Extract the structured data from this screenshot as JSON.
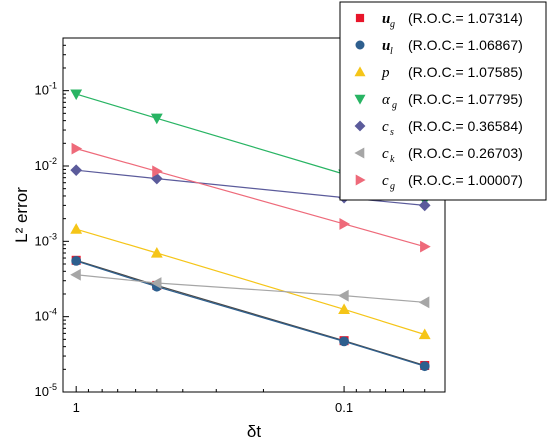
{
  "chart_data": {
    "type": "line",
    "xscale": "log",
    "yscale": "log",
    "x_reversed": true,
    "xlabel": "δt",
    "ylabel": "L² error",
    "xlim": [
      1.12,
      0.042
    ],
    "ylim": [
      1e-05,
      0.5
    ],
    "x_ticks": [
      {
        "value": 1,
        "label": "1"
      },
      {
        "value": 0.1,
        "label": "0.1"
      }
    ],
    "y_ticks": [
      {
        "value": 1e-05,
        "base": "10",
        "exp": "-5"
      },
      {
        "value": 0.0001,
        "base": "10",
        "exp": "-4"
      },
      {
        "value": 0.001,
        "base": "10",
        "exp": "-3"
      },
      {
        "value": 0.01,
        "base": "10",
        "exp": "-2"
      },
      {
        "value": 0.1,
        "base": "10",
        "exp": "-1"
      }
    ],
    "grid": false,
    "legend_position": "top-right",
    "x": [
      1,
      0.5,
      0.1,
      0.05
    ],
    "series": [
      {
        "id": "ug",
        "sym": "u",
        "sub": "g",
        "bold": true,
        "roc": "(R.O.C.= 1.07314)",
        "marker": "square",
        "marker_color": "#e8152a",
        "line_color": "#4a4a4a",
        "values": [
          0.00056,
          0.00026,
          4.8e-05,
          2.25e-05
        ]
      },
      {
        "id": "ul",
        "sym": "u",
        "sub": "l",
        "bold": true,
        "roc": "(R.O.C.= 1.06867)",
        "marker": "circle",
        "marker_color": "#2e5f8e",
        "line_color": "#2e5f8e",
        "values": [
          0.00055,
          0.00025,
          4.7e-05,
          2.2e-05
        ]
      },
      {
        "id": "p",
        "sym": "p",
        "sub": "",
        "bold": false,
        "roc": "(R.O.C.= 1.07585)",
        "marker": "triangle-up",
        "marker_color": "#f5c518",
        "line_color": "#f5c518",
        "values": [
          0.00145,
          0.0007,
          0.000125,
          5.8e-05
        ]
      },
      {
        "id": "ag",
        "sym": "α",
        "sub": "g",
        "bold": false,
        "roc": "(R.O.C.= 1.07795)",
        "marker": "triangle-down",
        "marker_color": "#28b463",
        "line_color": "#28b463",
        "values": [
          0.09,
          0.043,
          0.0078,
          0.0035
        ]
      },
      {
        "id": "cs",
        "sym": "c",
        "sub": "s",
        "bold": false,
        "roc": "(R.O.C.= 0.36584)",
        "marker": "diamond",
        "marker_color": "#5b5b9b",
        "line_color": "#5b5b9b",
        "values": [
          0.0088,
          0.0068,
          0.0038,
          0.003
        ]
      },
      {
        "id": "ck",
        "sym": "c",
        "sub": "k",
        "bold": false,
        "roc": "(R.O.C.= 0.26703)",
        "marker": "triangle-left",
        "marker_color": "#a6a6a6",
        "line_color": "#a6a6a6",
        "values": [
          0.00036,
          0.00028,
          0.00019,
          0.000155
        ]
      },
      {
        "id": "cg",
        "sym": "c",
        "sub": "g",
        "bold": false,
        "roc": "(R.O.C.= 1.00007)",
        "marker": "triangle-right",
        "marker_color": "#ee6a7a",
        "line_color": "#ee6a7a",
        "values": [
          0.017,
          0.0085,
          0.0017,
          0.00085
        ]
      }
    ]
  }
}
